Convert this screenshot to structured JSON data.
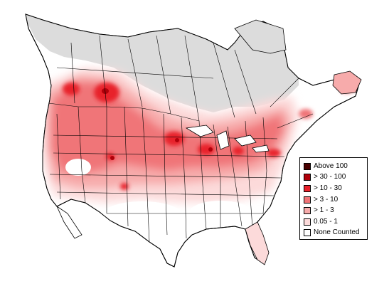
{
  "colors": {
    "land": "#ffffff",
    "none_counted_region": "#dcdcdc",
    "border": "#000000",
    "ocean": "#ffffff"
  },
  "legend": {
    "items": [
      {
        "label": "Above 100",
        "color": "#4a0000"
      },
      {
        "label": "> 30 - 100",
        "color": "#b0000a"
      },
      {
        "label": "> 10 - 30",
        "color": "#e8202a"
      },
      {
        "label": "> 3 - 10",
        "color": "#f07478"
      },
      {
        "label": "> 1 - 3",
        "color": "#f7abab"
      },
      {
        "label": "0.05 - 1",
        "color": "#fcdada"
      },
      {
        "label": "None Counted",
        "color": "#ffffff"
      }
    ]
  }
}
